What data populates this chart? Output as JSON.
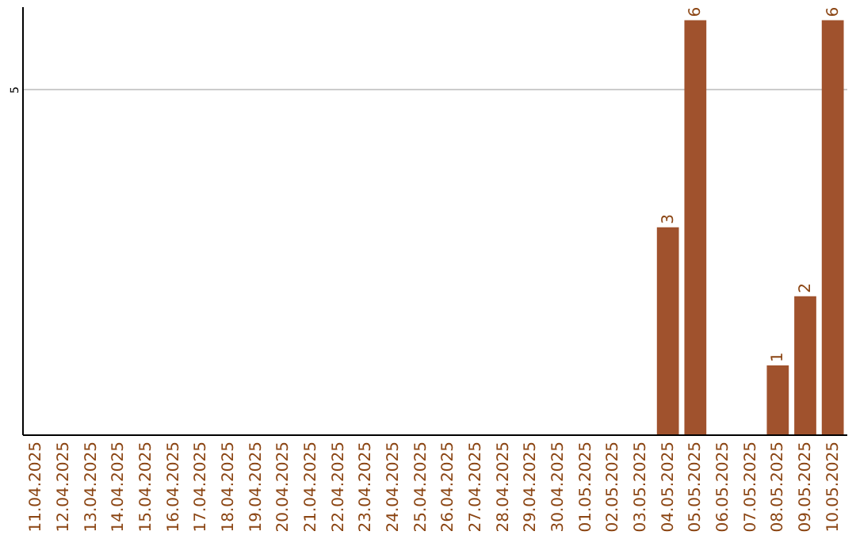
{
  "chart_data": {
    "type": "bar",
    "categories": [
      "11.04.2025",
      "12.04.2025",
      "13.04.2025",
      "14.04.2025",
      "15.04.2025",
      "16.04.2025",
      "17.04.2025",
      "18.04.2025",
      "19.04.2025",
      "20.04.2025",
      "21.04.2025",
      "22.04.2025",
      "23.04.2025",
      "24.04.2025",
      "25.04.2025",
      "26.04.2025",
      "27.04.2025",
      "28.04.2025",
      "29.04.2025",
      "30.04.2025",
      "01.05.2025",
      "02.05.2025",
      "03.05.2025",
      "04.05.2025",
      "05.05.2025",
      "06.05.2025",
      "07.05.2025",
      "08.05.2025",
      "09.05.2025",
      "10.05.2025"
    ],
    "values": [
      null,
      null,
      null,
      null,
      null,
      null,
      null,
      null,
      null,
      null,
      null,
      null,
      null,
      null,
      null,
      null,
      null,
      null,
      null,
      null,
      null,
      null,
      null,
      3,
      6,
      null,
      null,
      1,
      2,
      6
    ],
    "color": "#a0522d",
    "ylim": [
      0,
      6.2
    ],
    "yticks": [
      5
    ],
    "grid": "y",
    "data_labels": true
  }
}
